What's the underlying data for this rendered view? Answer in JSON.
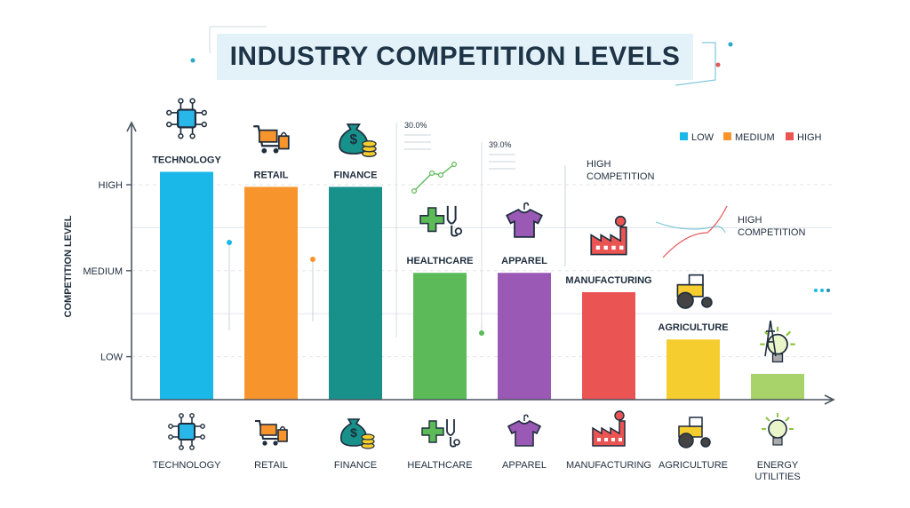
{
  "chart_data": {
    "type": "bar",
    "title": "INDUSTRY COMPETITION LEVELS",
    "ylabel": "COMPETITION LEVEL",
    "xlabel": "",
    "y_ticks": [
      {
        "label": "LOW",
        "value": 1
      },
      {
        "label": "MEDIUM",
        "value": 3
      },
      {
        "label": "HIGH",
        "value": 5
      }
    ],
    "ylim": [
      0,
      6
    ],
    "categories": [
      {
        "label": "TECHNOLOGY",
        "bottom_label": "TECHNOLOGY",
        "value": 5.3,
        "color": "#1ab8e8",
        "icon": "chip-icon"
      },
      {
        "label": "RETAIL",
        "bottom_label": "RETAIL",
        "value": 4.95,
        "color": "#f7942b",
        "icon": "shopping-cart-icon"
      },
      {
        "label": "FINANCE",
        "bottom_label": "FINANCE",
        "value": 4.95,
        "color": "#17918a",
        "icon": "money-bag-icon"
      },
      {
        "label": "HEALTHCARE",
        "bottom_label": "HEALTHCARE",
        "value": 2.95,
        "color": "#5cba58",
        "icon": "stethoscope-icon"
      },
      {
        "label": "APPAREL",
        "bottom_label": "APPAREL",
        "value": 2.95,
        "color": "#9b59b6",
        "icon": "shirt-icon"
      },
      {
        "label": "MANUFACTURING",
        "bottom_label": "MANUFACTURING",
        "value": 2.5,
        "color": "#ea5453",
        "icon": "factory-icon"
      },
      {
        "label": "AGRICULTURE",
        "bottom_label": "AGRICULTURE",
        "value": 1.4,
        "color": "#f6cd2e",
        "icon": "tractor-icon"
      },
      {
        "label": "",
        "bottom_label": "ENERGY UTILITIES",
        "value": 0.6,
        "color": "#a8d26a",
        "icon": "lightbulb-icon"
      }
    ],
    "legend": {
      "placement": "top-right",
      "items": [
        {
          "label": "LOW",
          "color": "#1ab8e8"
        },
        {
          "label": "MEDIUM",
          "color": "#f7942b"
        },
        {
          "label": "HIGH",
          "color": "#ea5453"
        }
      ]
    },
    "annotations": [
      "30.0%",
      "39.0%",
      "HIGH COMPETITION",
      "HIGH COMPETITION"
    ],
    "grid": true
  }
}
